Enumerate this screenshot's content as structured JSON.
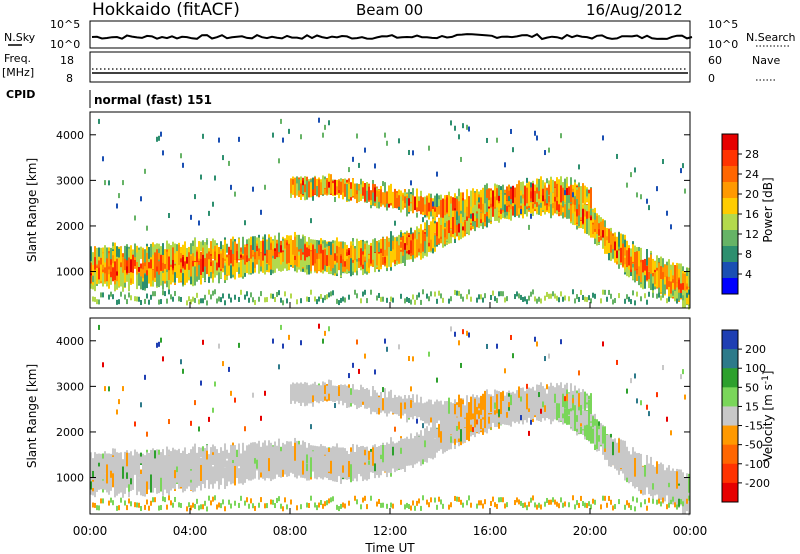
{
  "header": {
    "station": "Hokkaido (fitACF)",
    "beam": "Beam 00",
    "date": "16/Aug/2012"
  },
  "noise_panel": {
    "left_label": "N.Sky",
    "right_label": "N.Search",
    "tick_top_left": "10^5",
    "tick_bottom_left": "10^0",
    "tick_top_right": "10^5",
    "tick_bottom_right": "10^0"
  },
  "freq_panel": {
    "left_label_line1": "Freq.",
    "left_label_line2": "[MHz]",
    "right_label": "Nave",
    "left_ticks": [
      "18",
      "8"
    ],
    "right_ticks": [
      "60",
      "0"
    ]
  },
  "cpid": {
    "label": "CPID",
    "value": "normal (fast) 151"
  },
  "x_axis": {
    "label": "Time UT",
    "ticks": [
      "00:00",
      "04:00",
      "08:00",
      "12:00",
      "16:00",
      "20:00",
      "00:00"
    ]
  },
  "power_panel": {
    "ylabel": "Slant Range [km]",
    "yticks": [
      "4000",
      "3000",
      "2000",
      "1000"
    ],
    "colorbar_label": "Power [dB]",
    "colorbar_ticks": [
      "28",
      "24",
      "20",
      "16",
      "12",
      "8",
      "4"
    ],
    "colors": [
      "#e60000",
      "#ff3300",
      "#ff6600",
      "#ff9900",
      "#ffcc00",
      "#b3d94d",
      "#66b366",
      "#2d8f6f",
      "#1a4fb3",
      "#0000ff"
    ]
  },
  "velocity_panel": {
    "ylabel": "Slant Range [km]",
    "yticks": [
      "4000",
      "3000",
      "2000",
      "1000"
    ],
    "colorbar_label": "Velocity [m s",
    "colorbar_label_sup": "-1",
    "colorbar_label_close": "]",
    "colorbar_ticks": [
      "200",
      "100",
      "50",
      "15",
      "-15",
      "-50",
      "-100",
      "-200"
    ],
    "colors": [
      "#1f3fb3",
      "#2d7a8a",
      "#2da02d",
      "#7ad65a",
      "#c8c8c8",
      "#ff9900",
      "#ff6600",
      "#ff3300",
      "#e60000"
    ]
  },
  "chart_data": {
    "type": "heatmap",
    "x_range_hours": [
      0,
      24
    ],
    "y_range_km": [
      200,
      4500
    ],
    "power_scatter_bands": [
      {
        "t": [
          0,
          2,
          4,
          6,
          8,
          9.5,
          11,
          12,
          13,
          14,
          15,
          16,
          17,
          18,
          19,
          20,
          21,
          22,
          24
        ],
        "center_km": [
          1100,
          1100,
          1200,
          1300,
          1450,
          1300,
          1300,
          1450,
          1600,
          1900,
          2100,
          2400,
          2500,
          2600,
          2500,
          2100,
          1500,
          1100,
          600
        ],
        "width_km": [
          700,
          700,
          700,
          600,
          500,
          500,
          450,
          450,
          450,
          450,
          400,
          400,
          350,
          350,
          400,
          400,
          500,
          600,
          600
        ]
      },
      {
        "t": [
          8,
          10,
          12,
          14,
          16,
          17,
          18,
          19,
          20
        ],
        "center_km": [
          2850,
          2850,
          2600,
          2400,
          2600,
          2700,
          2750,
          2750,
          2600
        ],
        "width_km": [
          150,
          200,
          250,
          300,
          300,
          300,
          300,
          300,
          250
        ]
      }
    ],
    "velocity_ranges": {
      "min": -200,
      "max": 200
    }
  }
}
